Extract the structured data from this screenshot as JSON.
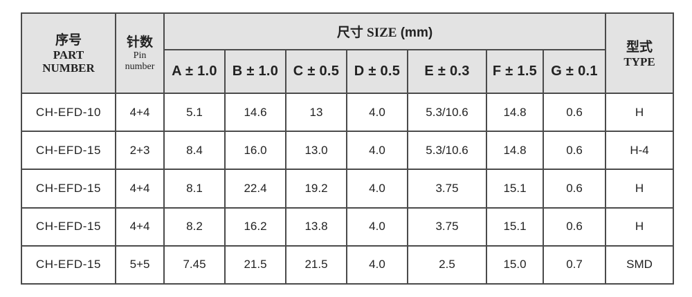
{
  "header": {
    "part": {
      "cn": "序号",
      "en1": "PART",
      "en2": "NUMBER"
    },
    "pin": {
      "cn": "针数",
      "en1": "Pin",
      "en2": "number"
    },
    "size": {
      "cn": "尺寸",
      "en": "SIZE",
      "unit": "(mm)"
    },
    "type": {
      "cn": "型式",
      "en": "TYPE"
    },
    "dims": [
      "A ± 1.0",
      "B ± 1.0",
      "C ± 0.5",
      "D ± 0.5",
      "E ± 0.3",
      "F ± 1.5",
      "G ± 0.1"
    ]
  },
  "rows": [
    {
      "part": "CH-EFD-10",
      "pin": "4+4",
      "a": "5.1",
      "b": "14.6",
      "c": "13",
      "d": "4.0",
      "e": "5.3/10.6",
      "f": "14.8",
      "g": "0.6",
      "type": "H"
    },
    {
      "part": "CH-EFD-15",
      "pin": "2+3",
      "a": "8.4",
      "b": "16.0",
      "c": "13.0",
      "d": "4.0",
      "e": "5.3/10.6",
      "f": "14.8",
      "g": "0.6",
      "type": "H-4"
    },
    {
      "part": "CH-EFD-15",
      "pin": "4+4",
      "a": "8.1",
      "b": "22.4",
      "c": "19.2",
      "d": "4.0",
      "e": "3.75",
      "f": "15.1",
      "g": "0.6",
      "type": "H"
    },
    {
      "part": "CH-EFD-15",
      "pin": "4+4",
      "a": "8.2",
      "b": "16.2",
      "c": "13.8",
      "d": "4.0",
      "e": "3.75",
      "f": "15.1",
      "g": "0.6",
      "type": "H"
    },
    {
      "part": "CH-EFD-15",
      "pin": "5+5",
      "a": "7.45",
      "b": "21.5",
      "c": "21.5",
      "d": "4.0",
      "e": "2.5",
      "f": "15.0",
      "g": "0.7",
      "type": "SMD"
    }
  ]
}
